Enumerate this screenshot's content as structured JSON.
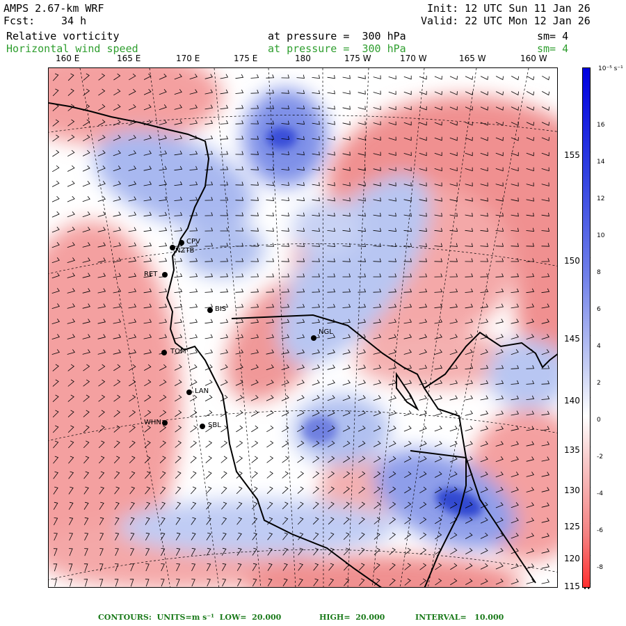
{
  "header": {
    "model": "AMPS 2.67-km WRF",
    "forecast_label": "Fcst:",
    "forecast_value": "34 h",
    "init": "Init: 12 UTC Sun 11 Jan 26",
    "valid": "Valid: 22 UTC Mon 12 Jan 26",
    "field1": "Relative vorticity",
    "field2": "Horizontal wind speed",
    "pressure1": "at pressure =  300 hPa",
    "pressure2": "at pressure =  300 hPa",
    "sm1": "sm= 4",
    "sm2": "sm= 4"
  },
  "lon_labels": [
    "160 E",
    "165 E",
    "170 E",
    "175 E",
    "180",
    "175 W",
    "170 W",
    "165 W",
    "160 W"
  ],
  "lat_labels": [
    "155 W",
    "150 W",
    "145 W",
    "140 W",
    "135 W",
    "130 W",
    "125 W",
    "120 W",
    "115 W"
  ],
  "colorbar": {
    "unit": "10⁻⁵ s⁻¹",
    "ticks": [
      "16",
      "14",
      "12",
      "10",
      "8",
      "6",
      "4",
      "2",
      "0",
      "-2",
      "-4",
      "-6",
      "-8"
    ],
    "positive_color": "#0000e0",
    "negative_color": "#ff3030"
  },
  "stations": [
    "CPV",
    "NZTB",
    "RET",
    "BIS",
    "TOM",
    "NGL",
    "LAN",
    "WHN",
    "SBL"
  ],
  "footer": {
    "contours": "CONTOURS:  UNITS=m s⁻¹  LOW=  20.000",
    "high": "HIGH=  20.000",
    "interval": "INTERVAL=   10.000"
  }
}
